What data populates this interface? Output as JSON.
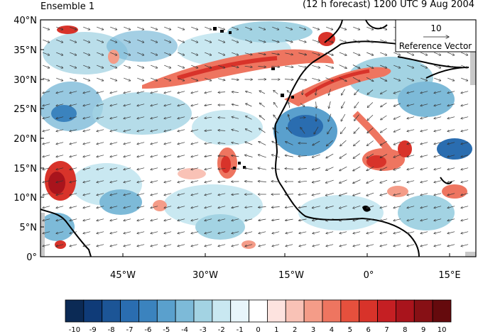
{
  "header": {
    "left_title": "Ensemble 1",
    "right_title": "(12 h forecast) 1200 UTC 9 Aug 2004"
  },
  "map": {
    "lat_ticks": [
      "40°N",
      "35°N",
      "30°N",
      "25°N",
      "20°N",
      "15°N",
      "10°N",
      "5°N",
      "0°"
    ],
    "lon_ticks": [
      "45°W",
      "30°W",
      "15°W",
      "0°",
      "15°E"
    ],
    "reference_vector": {
      "value": "10",
      "label": "Reference Vector"
    }
  },
  "colorbar": {
    "labels": [
      "-10",
      "-9",
      "-8",
      "-7",
      "-6",
      "-5",
      "-4",
      "-3",
      "-2",
      "-1",
      "0",
      "1",
      "2",
      "3",
      "4",
      "5",
      "6",
      "7",
      "8",
      "9",
      "10"
    ],
    "colors": [
      "#0b2a55",
      "#0f3b78",
      "#1c5596",
      "#2a6db0",
      "#3b83be",
      "#5aa0cd",
      "#7dbad8",
      "#a3d3e3",
      "#c9e8f1",
      "#e8f5fa",
      "#ffffff",
      "#fde3df",
      "#f9c2b6",
      "#f49c88",
      "#ee7560",
      "#e6503d",
      "#d8332a",
      "#c51f23",
      "#a9141c",
      "#871015",
      "#650a0d"
    ]
  }
}
